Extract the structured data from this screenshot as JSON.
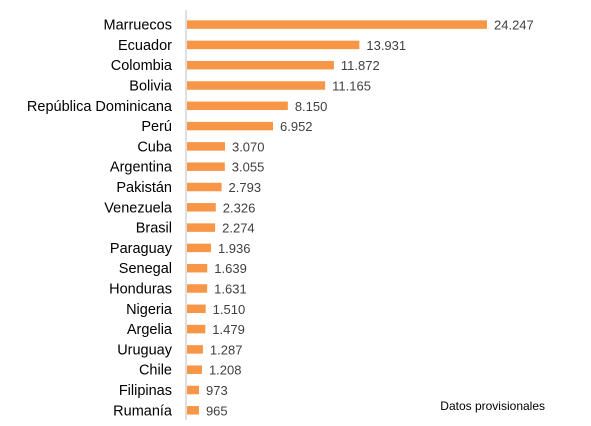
{
  "chart_data": {
    "type": "bar",
    "orientation": "horizontal",
    "categories": [
      "Marruecos",
      "Ecuador",
      "Colombia",
      "Bolivia",
      "República Dominicana",
      "Perú",
      "Cuba",
      "Argentina",
      "Pakistán",
      "Venezuela",
      "Brasil",
      "Paraguay",
      "Senegal",
      "Honduras",
      "Nigeria",
      "Argelia",
      "Uruguay",
      "Chile",
      "Filipinas",
      "Rumanía"
    ],
    "values": [
      24247,
      13931,
      11872,
      11165,
      8150,
      6952,
      3070,
      3055,
      2793,
      2326,
      2274,
      1936,
      1639,
      1631,
      1510,
      1479,
      1287,
      1208,
      973,
      965
    ],
    "value_labels": [
      "24.247",
      "13.931",
      "11.872",
      "11.165",
      "8.150",
      "6.952",
      "3.070",
      "3.055",
      "2.793",
      "2.326",
      "2.274",
      "1.936",
      "1.639",
      "1.631",
      "1.510",
      "1.479",
      "1.287",
      "1.208",
      "973",
      "965"
    ],
    "xlim": [
      0,
      24247
    ],
    "grid": false,
    "bar_color": "#F79646",
    "axis_color": "#BFBFBF",
    "note": "Datos provisionales"
  }
}
